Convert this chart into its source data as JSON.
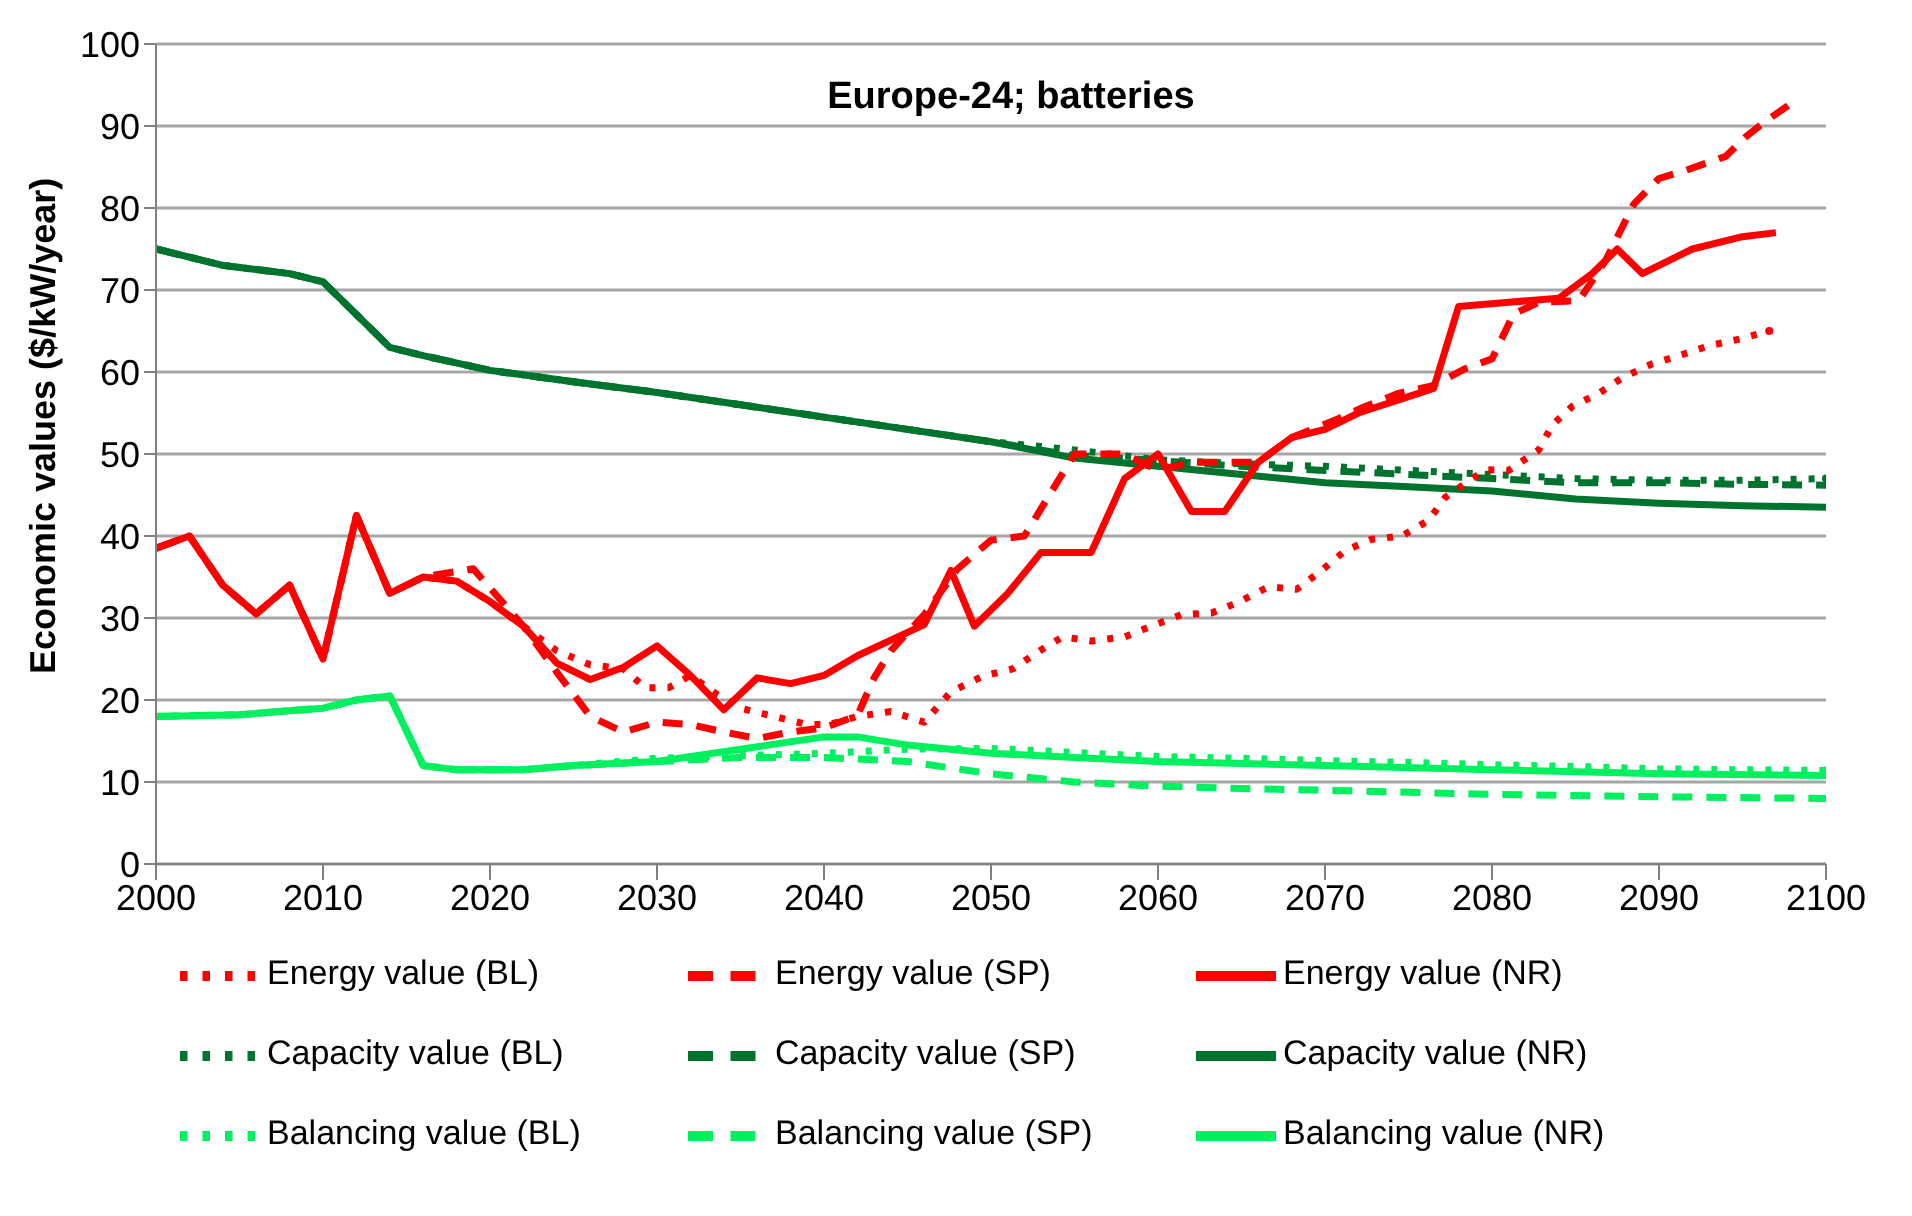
{
  "chart_data": {
    "type": "line",
    "title": "Europe-24; batteries",
    "ylabel": "Economic values ($/kW/year)",
    "xlim": [
      2000,
      2100
    ],
    "xticks": [
      2000,
      2010,
      2020,
      2030,
      2040,
      2050,
      2060,
      2070,
      2080,
      2090,
      2100
    ],
    "ylim": [
      0,
      100
    ],
    "yticks": [
      0,
      10,
      20,
      30,
      40,
      50,
      60,
      70,
      80,
      90,
      100
    ],
    "grid": "y",
    "legend": "bottom",
    "marker": "none",
    "series": [
      {
        "name": "Energy value (BL)",
        "color": "#ff0000",
        "line_style": "dotted",
        "x": [
          2000,
          2002,
          2004,
          2006,
          2008,
          2010,
          2012,
          2014,
          2016,
          2018,
          2020,
          2022,
          2024,
          2026,
          2028,
          2029.3,
          2030.7,
          2032,
          2033.5,
          2035,
          2037,
          2039,
          2040.3,
          2042,
          2044,
          2046,
          2047.6,
          2049.5,
          2051.3,
          2053,
          2054.3,
          2056,
          2058,
          2059.6,
          2061.4,
          2063.2,
          2064.8,
          2066.6,
          2068.3,
          2069.8,
          2071.2,
          2072.8,
          2074.6,
          2076.2,
          2077.2,
          2079.6,
          2081,
          2082.8,
          2083.6,
          2084.8,
          2086.4,
          2087.8,
          2089.6,
          2091.2,
          2093,
          2094.8,
          2096.6
        ],
        "values": [
          38.5,
          40,
          34,
          30.5,
          34,
          25,
          42.5,
          33,
          35,
          34.5,
          32,
          29,
          26,
          24.3,
          23.8,
          21.5,
          21.5,
          23,
          20.8,
          19,
          18,
          17,
          17,
          18,
          18.6,
          17.3,
          21,
          22.9,
          23.8,
          26.1,
          27.7,
          27.2,
          27.7,
          29,
          30.4,
          30.6,
          31.9,
          33.8,
          33.5,
          35.8,
          38.2,
          39.6,
          40,
          41.9,
          44.7,
          48.1,
          48,
          50.5,
          53.5,
          55.8,
          57.4,
          59.3,
          61,
          62,
          63.2,
          64,
          65
        ]
      },
      {
        "name": "Energy value (SP)",
        "color": "#ff0000",
        "line_style": "dashed",
        "x": [
          2000,
          2002,
          2004,
          2006,
          2008,
          2010,
          2012,
          2014,
          2016,
          2019,
          2022,
          2024,
          2026,
          2028,
          2030,
          2032,
          2034,
          2036,
          2038,
          2040,
          2042,
          2043,
          2044,
          2046,
          2048,
          2050,
          2052,
          2055,
          2058,
          2060,
          2062,
          2064,
          2066,
          2068,
          2070.8,
          2072.3,
          2074.4,
          2076.4,
          2078.4,
          2080,
          2081.3,
          2082.8,
          2085.2,
          2086.8,
          2088.5,
          2090,
          2091.6,
          2094,
          2095.2,
          2096.4,
          2097.8
        ],
        "values": [
          38.5,
          40,
          34,
          30.5,
          34,
          25,
          42.5,
          33,
          35,
          36,
          29,
          23.4,
          18,
          16.1,
          17.3,
          17,
          16.1,
          15.3,
          16.1,
          16.6,
          18.1,
          22.7,
          26,
          30.4,
          36,
          39.5,
          40,
          50,
          50,
          48,
          49,
          49,
          49,
          52,
          54.3,
          55.7,
          57.4,
          58.3,
          60.4,
          61.6,
          67.1,
          68.5,
          68.7,
          73.6,
          80.5,
          83.6,
          84.6,
          86.3,
          88.7,
          90.6,
          92.6
        ]
      },
      {
        "name": "Energy value (NR)",
        "color": "#ff0000",
        "line_style": "solid",
        "x": [
          2000,
          2002,
          2004,
          2006,
          2008,
          2010,
          2012,
          2014,
          2016,
          2018,
          2020,
          2022,
          2024,
          2026,
          2028,
          2030,
          2032,
          2034,
          2036,
          2038,
          2040,
          2042,
          2044,
          2046,
          2047.6,
          2049,
          2051,
          2053,
          2056,
          2058,
          2060,
          2062,
          2064,
          2066,
          2068,
          2070,
          2072,
          2075,
          2076.5,
          2078,
          2081,
          2084,
          2086,
          2087.5,
          2089,
          2092,
          2095,
          2097
        ],
        "values": [
          38.5,
          40,
          34,
          30.5,
          34,
          25,
          42.5,
          33,
          35,
          34.5,
          32,
          29,
          24.5,
          22.5,
          24,
          26.6,
          23,
          18.8,
          22.7,
          22,
          23,
          25.4,
          27.3,
          29.2,
          35.8,
          29,
          33,
          38,
          38,
          47,
          50,
          43,
          43,
          49,
          52,
          53,
          55,
          57,
          58,
          68,
          68.5,
          69,
          72,
          75,
          72,
          75,
          76.5,
          77
        ]
      },
      {
        "name": "Capacity value (BL)",
        "color": "#00742f",
        "line_style": "dotted",
        "x": [
          2000,
          2002,
          2004,
          2006,
          2008,
          2010,
          2012,
          2014,
          2016,
          2020,
          2025,
          2030,
          2035,
          2040,
          2045,
          2050,
          2055,
          2060,
          2065,
          2070,
          2075,
          2080,
          2085,
          2090,
          2095,
          2100
        ],
        "values": [
          75,
          74,
          73,
          72.5,
          72,
          71,
          67,
          63,
          62,
          60.2,
          58.8,
          57.5,
          56,
          54.5,
          53,
          51.5,
          50.5,
          49.3,
          48.8,
          48.5,
          48,
          47.5,
          47,
          46.8,
          46.8,
          47
        ]
      },
      {
        "name": "Capacity value (SP)",
        "color": "#00742f",
        "line_style": "dashed",
        "x": [
          2000,
          2002,
          2004,
          2006,
          2008,
          2010,
          2012,
          2014,
          2016,
          2020,
          2025,
          2030,
          2035,
          2040,
          2045,
          2050,
          2055,
          2060,
          2065,
          2070,
          2075,
          2080,
          2085,
          2090,
          2095,
          2100
        ],
        "values": [
          75,
          74,
          73,
          72.5,
          72,
          71,
          67,
          63,
          62,
          60.2,
          58.8,
          57.5,
          56,
          54.5,
          53,
          51.5,
          49.8,
          49.2,
          48.5,
          48,
          47.5,
          47,
          46.5,
          46.5,
          46.3,
          46.2
        ]
      },
      {
        "name": "Capacity value (NR)",
        "color": "#00742f",
        "line_style": "solid",
        "x": [
          2000,
          2002,
          2004,
          2006,
          2008,
          2010,
          2012,
          2014,
          2016,
          2020,
          2025,
          2030,
          2035,
          2040,
          2045,
          2050,
          2055,
          2060,
          2065,
          2070,
          2075,
          2080,
          2085,
          2090,
          2095,
          2100
        ],
        "values": [
          75,
          74,
          73,
          72.5,
          72,
          71,
          67,
          63,
          62,
          60.2,
          58.8,
          57.5,
          56,
          54.5,
          53,
          51.5,
          49.5,
          48.5,
          47.5,
          46.5,
          46,
          45.5,
          44.5,
          44,
          43.7,
          43.5
        ]
      },
      {
        "name": "Balancing value (BL)",
        "color": "#00f060",
        "line_style": "dotted",
        "x": [
          2000,
          2005,
          2008,
          2010,
          2012,
          2014,
          2016,
          2018,
          2020,
          2022,
          2025,
          2030,
          2035,
          2040,
          2045,
          2050,
          2055,
          2060,
          2065,
          2070,
          2075,
          2080,
          2085,
          2090,
          2095,
          2100
        ],
        "values": [
          18,
          18.2,
          18.7,
          19,
          20,
          20.5,
          12,
          11.5,
          11.5,
          11.5,
          12,
          12.9,
          13.2,
          13.5,
          14,
          14.1,
          13.6,
          13.1,
          12.9,
          12.6,
          12.4,
          12.1,
          11.9,
          11.6,
          11.5,
          11.4
        ]
      },
      {
        "name": "Balancing value (SP)",
        "color": "#00f060",
        "line_style": "dashed",
        "x": [
          2000,
          2005,
          2008,
          2010,
          2012,
          2014,
          2016,
          2018,
          2020,
          2022,
          2025,
          2030,
          2035,
          2040,
          2045,
          2050,
          2055,
          2060,
          2065,
          2070,
          2080,
          2090,
          2100
        ],
        "values": [
          18,
          18.2,
          18.7,
          19,
          20,
          20.5,
          12,
          11.5,
          11.5,
          11.5,
          12,
          12.5,
          13,
          13,
          12.5,
          11,
          10,
          9.5,
          9.2,
          9,
          8.5,
          8.2,
          8
        ]
      },
      {
        "name": "Balancing value (NR)",
        "color": "#00f060",
        "line_style": "solid",
        "x": [
          2000,
          2005,
          2008,
          2010,
          2012,
          2014,
          2016,
          2018,
          2020,
          2022,
          2025,
          2030,
          2035,
          2040,
          2042,
          2045,
          2050,
          2055,
          2060,
          2070,
          2080,
          2090,
          2100
        ],
        "values": [
          18,
          18.2,
          18.7,
          19,
          20,
          20.5,
          12,
          11.5,
          11.5,
          11.5,
          12,
          12.5,
          14,
          15.5,
          15.5,
          14.5,
          13.5,
          13,
          12.5,
          12,
          11.5,
          11,
          10.8
        ]
      }
    ]
  }
}
